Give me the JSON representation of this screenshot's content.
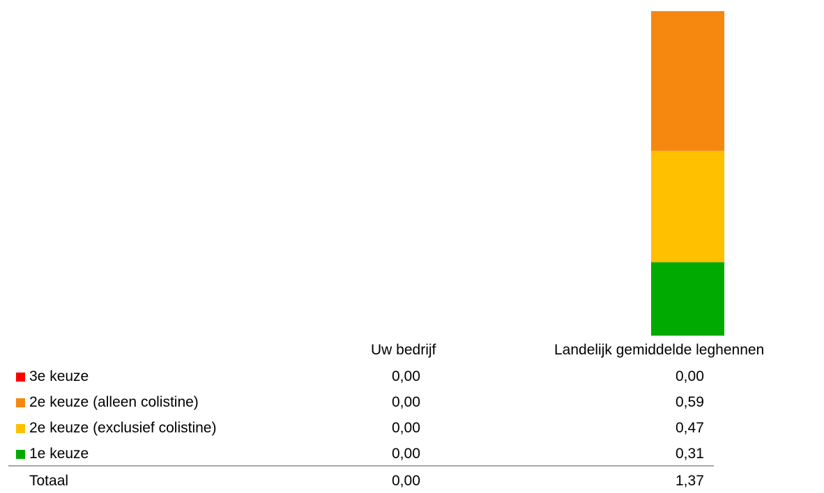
{
  "chart_data": {
    "type": "bar",
    "stacked": true,
    "categories": [
      "Uw bedrijf",
      "Landelijk gemiddelde leghennen"
    ],
    "series": [
      {
        "name": "3e keuze",
        "values": [
          0.0,
          0.0
        ],
        "value_labels": [
          "0,00",
          "0,00"
        ],
        "color": "#ff0000"
      },
      {
        "name": "2e keuze (alleen colistine)",
        "values": [
          0.0,
          0.59
        ],
        "value_labels": [
          "0,00",
          "0,59"
        ],
        "color": "#f6870f"
      },
      {
        "name": "2e keuze (exclusief colistine)",
        "values": [
          0.0,
          0.47
        ],
        "value_labels": [
          "0,00",
          "0,47"
        ],
        "color": "#ffc000"
      },
      {
        "name": "1e keuze",
        "values": [
          0.0,
          0.31
        ],
        "value_labels": [
          "0,00",
          "0,31"
        ],
        "color": "#00aa00"
      }
    ],
    "totals": {
      "label": "Totaal",
      "values": [
        0.0,
        1.37
      ],
      "value_labels": [
        "0,00",
        "1,37"
      ]
    },
    "title": "",
    "xlabel": "",
    "ylabel": "",
    "ylim": [
      0,
      1.37
    ],
    "grid": false,
    "legend": "data-table"
  }
}
